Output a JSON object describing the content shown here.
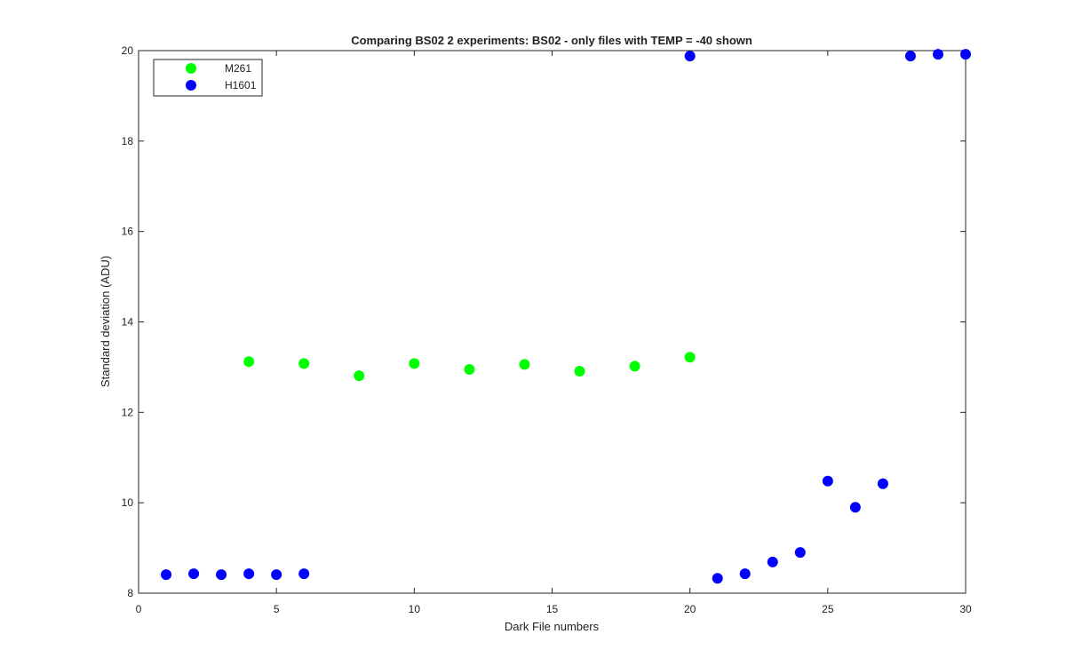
{
  "chart_data": {
    "type": "scatter",
    "title": "Comparing BS02 2 experiments: BS02 - only files with TEMP = -40 shown",
    "xlabel": "Dark File numbers",
    "ylabel": "Standard deviation (ADU)",
    "xlim": [
      0,
      30
    ],
    "ylim": [
      8,
      20
    ],
    "xticks": [
      0,
      5,
      10,
      15,
      20,
      25,
      30
    ],
    "yticks": [
      8,
      10,
      12,
      14,
      16,
      18,
      20
    ],
    "grid": false,
    "legend_position": "top-left",
    "series": [
      {
        "name": "M261",
        "color": "#00ff00",
        "x": [
          4,
          6,
          8,
          10,
          12,
          14,
          16,
          18,
          20
        ],
        "y": [
          13.12,
          13.08,
          12.81,
          13.08,
          12.95,
          13.06,
          12.91,
          13.02,
          13.22
        ]
      },
      {
        "name": "H1601",
        "color": "#0000ff",
        "x": [
          1,
          2,
          3,
          4,
          5,
          6,
          20,
          21,
          22,
          23,
          24,
          25,
          26,
          27,
          28,
          29,
          30
        ],
        "y": [
          8.41,
          8.43,
          8.41,
          8.43,
          8.41,
          8.43,
          19.88,
          8.33,
          8.43,
          8.69,
          8.9,
          10.48,
          9.9,
          10.42,
          19.88,
          19.92,
          19.92
        ]
      }
    ]
  }
}
